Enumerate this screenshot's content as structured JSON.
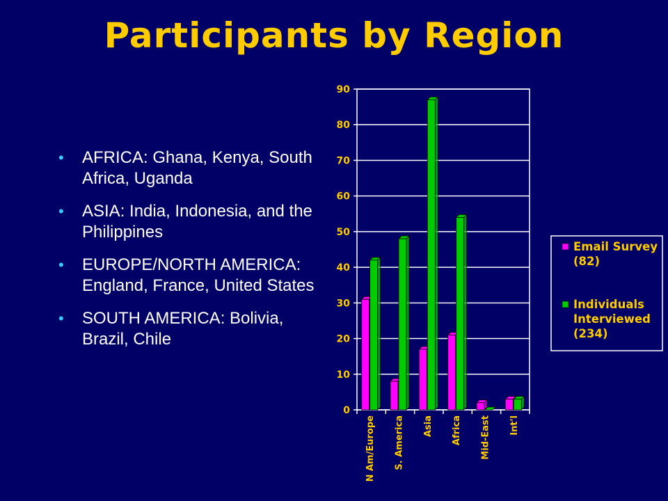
{
  "slide": {
    "title": "Participants by Region",
    "bullets": [
      "AFRICA: Ghana, Kenya, South Africa, Uganda",
      "ASIA: India, Indonesia, and the Philippines",
      "EUROPE/NORTH AMERICA: England, France, United States",
      "SOUTH AMERICA: Bolivia, Brazil, Chile"
    ]
  },
  "chart_data": {
    "type": "bar",
    "categories": [
      "N Am/Europe",
      "S. America",
      "Asia",
      "Africa",
      "Mid-East",
      "Int'l"
    ],
    "series": [
      {
        "name": "Email Survey (82)",
        "values": [
          31,
          8,
          17,
          21,
          2,
          3
        ],
        "color": "#ff00ff"
      },
      {
        "name": "Individuals Interviewed (234)",
        "values": [
          42,
          48,
          87,
          54,
          0,
          3
        ],
        "color": "#00cc00"
      }
    ],
    "ylim": [
      0,
      90
    ],
    "yticks": [
      0,
      10,
      20,
      30,
      40,
      50,
      60,
      70,
      80,
      90
    ],
    "grid": true,
    "legend_position": "right",
    "colors": {
      "axis_text": "#ffcc00",
      "background": "#000066",
      "grid": "#ffffff"
    }
  }
}
